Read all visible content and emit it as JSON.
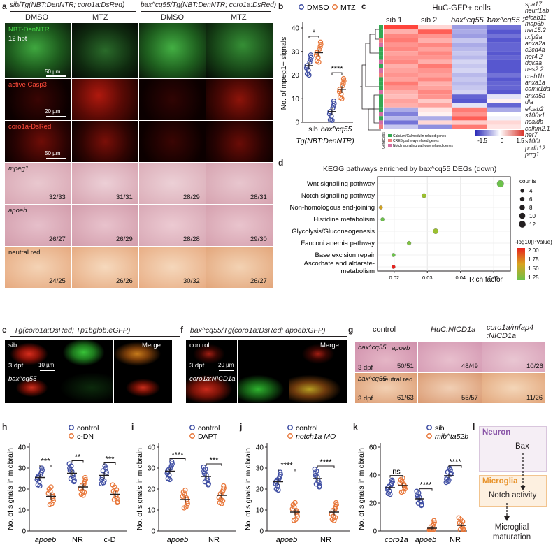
{
  "panel_letters": {
    "a": "a",
    "b": "b",
    "c": "c",
    "d": "d",
    "e": "e",
    "f": "f",
    "g": "g",
    "h": "h",
    "i": "i",
    "j": "j",
    "k": "k",
    "l": "l"
  },
  "panel_a": {
    "group_left": "sib/Tg(NBT:DenNTR; coro1a:DsRed)",
    "group_right": "bax^cq55/Tg(NBT:DenNTR; coro1a:DsRed)",
    "columns": [
      "DMSO",
      "MTZ",
      "DMSO",
      "MTZ"
    ],
    "row_labels": [
      "NBT-DenNTR",
      "active Casp3",
      "coro1a-DsRed",
      "mpeg1",
      "apoeb",
      "neutral red"
    ],
    "time_label": "12 hpt",
    "scale_bars": [
      "50 µm",
      "20 µm",
      "50 µm"
    ],
    "counts": {
      "mpeg1": [
        "32/33",
        "31/31",
        "28/29",
        "28/31"
      ],
      "apoeb": [
        "26/27",
        "26/29",
        "28/28",
        "29/30"
      ],
      "neutral_red": [
        "24/25",
        "26/26",
        "30/32",
        "26/27"
      ]
    }
  },
  "panel_b": {
    "legend": [
      "DMSO",
      "MTZ"
    ],
    "ylabel": "No. of mpeg1+ signals",
    "xticks": [
      "sib",
      "bax^cq55"
    ],
    "xlabel": "Tg(NBT:DenNTR)",
    "sig": [
      "*",
      "****"
    ],
    "yticks": [
      "0",
      "10",
      "20",
      "30",
      "40"
    ]
  },
  "panel_c": {
    "title": "HuC-GFP+ cells",
    "columns": [
      "sib 1",
      "sib 2",
      "bax^cq55 1",
      "bax^cq55 2"
    ],
    "genes": [
      "spa17",
      "neurl1ab",
      "efcab11",
      "map6b",
      "her15.2",
      "rxfp2a",
      "anxa2a",
      "c2cd4a",
      "her4.2",
      "dgkaa",
      "hes2.2",
      "creb1b",
      "anxa1a",
      "camk1da",
      "anxa5b",
      "dla",
      "efcab2",
      "s100v1",
      "ncaldb",
      "calhm2.1",
      "her7",
      "s100t",
      "pcdh12",
      "prrg1"
    ],
    "legend_title": "Geneclass",
    "classes": [
      "Calcium/Calmodulin related genes",
      "CREB pathway related genes",
      "Notch signaling pathway related genes"
    ],
    "colorbar_ticks": [
      "-1.5",
      "0",
      "1.5"
    ]
  },
  "panel_d": {
    "title": "KEGG pathways enriched by bax^cq55 DEGs (down)",
    "pathways": [
      "Wnt signalling pathway",
      "Notch signalling pathway",
      "Non-homologous end-joining",
      "Histidine metabolism",
      "Glycolysis/Gluconeogenesis",
      "Fanconi anemia pathway",
      "Base excision repair",
      "Ascorbate and aldarate-",
      "metabolism"
    ],
    "xlabel": "Rich factor",
    "xticks": [
      "0.02",
      "0.03",
      "0.04",
      "0.05"
    ],
    "counts_title": "counts",
    "counts_ticks": [
      "4",
      "6",
      "8",
      "10",
      "12"
    ],
    "pval_title": "-log10(PValue)",
    "pval_ticks": [
      "2.00",
      "1.75",
      "1.50",
      "1.25"
    ]
  },
  "chart_data": [
    {
      "type": "scatter",
      "title": "",
      "ylabel": "No. of mpeg1+ signals",
      "xlabel": "Tg(NBT:DenNTR)",
      "categories": [
        "sib",
        "bax^cq55"
      ],
      "ylim": [
        0,
        40
      ],
      "series": [
        {
          "name": "DMSO",
          "values": [
            24,
            4.5
          ]
        },
        {
          "name": "MTZ",
          "values": [
            29.5,
            14
          ]
        }
      ]
    },
    {
      "type": "scatter",
      "title": "KEGG pathways enriched by bax^cq55 DEGs (down)",
      "xlabel": "Rich factor",
      "xlim": [
        0.015,
        0.055
      ],
      "points": [
        {
          "pathway": "Wnt signalling pathway",
          "rich_factor": 0.052,
          "count": 12
        },
        {
          "pathway": "Notch signalling pathway",
          "rich_factor": 0.029,
          "count": 6
        },
        {
          "pathway": "Non-homologous end-joining",
          "rich_factor": 0.016,
          "count": 4
        },
        {
          "pathway": "Histidine metabolism",
          "rich_factor": 0.0165,
          "count": 4
        },
        {
          "pathway": "Glycolysis/Gluconeogenesis",
          "rich_factor": 0.0325,
          "count": 8
        },
        {
          "pathway": "Fanconi anemia pathway",
          "rich_factor": 0.0245,
          "count": 5
        },
        {
          "pathway": "Base excision repair",
          "rich_factor": 0.0198,
          "count": 4
        },
        {
          "pathway": "Ascorbate and aldarate-metabolism",
          "rich_factor": 0.0198,
          "count": 4
        }
      ]
    },
    {
      "type": "scatter",
      "title": "",
      "ylabel": "No. of signals in midbrain",
      "categories": [
        "apoeb",
        "NR",
        "c-D"
      ],
      "ylim": [
        0,
        40
      ],
      "series": [
        {
          "name": "control",
          "values": [
            25.5,
            27.5,
            26.5
          ]
        },
        {
          "name": "c-DN",
          "values": [
            16.5,
            21,
            17.5
          ]
        }
      ]
    },
    {
      "type": "scatter",
      "title": "",
      "ylabel": "No. of signals in midbrain",
      "categories": [
        "apoeb",
        "NR"
      ],
      "ylim": [
        0,
        40
      ],
      "series": [
        {
          "name": "control",
          "values": [
            28.5,
            26
          ]
        },
        {
          "name": "DAPT",
          "values": [
            15,
            17
          ]
        }
      ]
    },
    {
      "type": "scatter",
      "title": "",
      "ylabel": "No. of signals in midbrain",
      "categories": [
        "apoeb",
        "NR"
      ],
      "ylim": [
        0,
        40
      ],
      "series": [
        {
          "name": "control",
          "values": [
            23.5,
            25
          ]
        },
        {
          "name": "notch1a MO",
          "values": [
            9,
            9
          ]
        }
      ]
    },
    {
      "type": "scatter",
      "title": "",
      "ylabel": "No. of signals in midbrain",
      "categories": [
        "coro1a",
        "apoeb",
        "NR"
      ],
      "ylim": [
        0,
        60
      ],
      "series": [
        {
          "name": "sib",
          "values": [
            31,
            23,
            39.5
          ]
        },
        {
          "name": "mib^ta52b",
          "values": [
            32.5,
            2,
            4
          ]
        }
      ]
    }
  ],
  "panel_e": {
    "title": "Tg(coro1a:DsRed; Tp1bglob:eGFP)",
    "rows": [
      "sib",
      "bax^cq55"
    ],
    "merge": "Merge",
    "time": "3 dpf",
    "scale": "10 µm"
  },
  "panel_f": {
    "title": "bax^cq55/Tg(coro1a:DsRed; apoeb:GFP)",
    "rows": [
      "control",
      "coro1a:NICD1a"
    ],
    "merge": "Merge",
    "time": "3 dpf",
    "scale": "20 µm"
  },
  "panel_g": {
    "columns": [
      "control",
      "HuC:NICD1a",
      "coro1a/mfap4\n:NICD1a"
    ],
    "rows": [
      "apoeb",
      "neutral red"
    ],
    "genotype": "bax^cq55",
    "time": "3 dpf",
    "counts": {
      "apoeb": [
        "50/51",
        "48/49",
        "10/26"
      ],
      "neutral_red": [
        "61/63",
        "55/57",
        "11/26"
      ]
    }
  },
  "panel_h": {
    "ylabel": "No. of signals in midbrain",
    "legend": [
      "control",
      "c-DN"
    ],
    "xticks": [
      "apoeb",
      "NR",
      "c-D"
    ],
    "sig": [
      "***",
      "**",
      "***"
    ],
    "yticks": [
      "0",
      "10",
      "20",
      "30",
      "40"
    ]
  },
  "panel_i": {
    "ylabel": "No. of signals in midbrain",
    "legend": [
      "control",
      "DAPT"
    ],
    "xticks": [
      "apoeb",
      "NR"
    ],
    "sig": [
      "****",
      "***"
    ],
    "yticks": [
      "0",
      "10",
      "20",
      "30",
      "40"
    ]
  },
  "panel_j": {
    "ylabel": "No. of signals in midbrain",
    "legend": [
      "control",
      "notch1a MO"
    ],
    "xticks": [
      "apoeb",
      "NR"
    ],
    "sig": [
      "****",
      "****"
    ],
    "yticks": [
      "0",
      "10",
      "20",
      "30",
      "40"
    ]
  },
  "panel_k": {
    "ylabel": "No. of signals in midbrain",
    "legend": [
      "sib",
      "mib^ta52b"
    ],
    "xticks": [
      "coro1a",
      "apoeb",
      "NR"
    ],
    "sig": [
      "ns",
      "****",
      "****"
    ],
    "yticks": [
      "0",
      "20",
      "40",
      "60"
    ]
  },
  "panel_l": {
    "neuron": "Neuron",
    "bax": "Bax",
    "microglia": "Microglia",
    "notch": "Notch activity",
    "maturation": "Microglial\nmaturation"
  },
  "colors": {
    "control": "#3f4ea3",
    "treated": "#e8773a",
    "heat_high": "#d73027",
    "heat_low": "#2a2ab8"
  }
}
